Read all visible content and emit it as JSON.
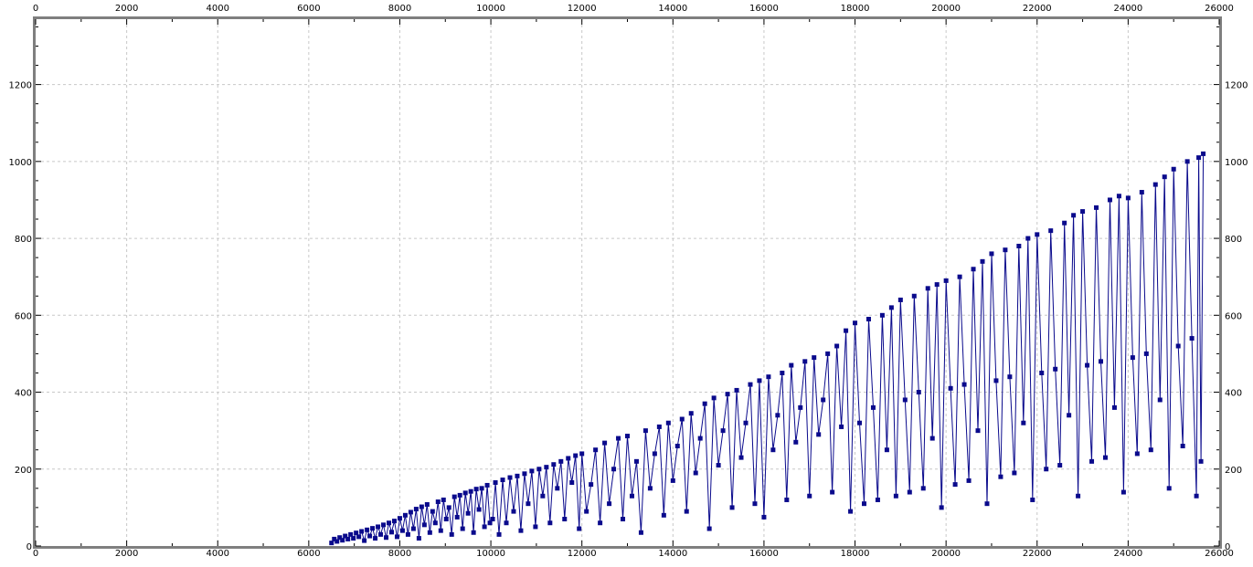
{
  "chart_data": {
    "type": "line",
    "title": "",
    "xlabel": "",
    "ylabel": "",
    "xlim": [
      0,
      26000
    ],
    "ylim": [
      0,
      1370
    ],
    "x_ticks": [
      0,
      2000,
      4000,
      6000,
      8000,
      10000,
      12000,
      14000,
      16000,
      18000,
      20000,
      22000,
      24000,
      26000
    ],
    "y_ticks": [
      0,
      200,
      400,
      600,
      800,
      1000,
      1200
    ],
    "x_ticks_top": true,
    "y_ticks_right": true,
    "grid": true,
    "legend": "none",
    "colors": {
      "series": "#0a0a8c",
      "grid": "#c8c8c8",
      "frame": "#7f7f7f"
    },
    "marker": "square",
    "series": [
      {
        "points": [
          [
            6500,
            8
          ],
          [
            6560,
            18
          ],
          [
            6620,
            12
          ],
          [
            6680,
            22
          ],
          [
            6740,
            15
          ],
          [
            6800,
            26
          ],
          [
            6860,
            18
          ],
          [
            6920,
            30
          ],
          [
            6980,
            20
          ],
          [
            7040,
            34
          ],
          [
            7100,
            24
          ],
          [
            7160,
            38
          ],
          [
            7220,
            14
          ],
          [
            7280,
            42
          ],
          [
            7340,
            26
          ],
          [
            7400,
            46
          ],
          [
            7460,
            20
          ],
          [
            7520,
            50
          ],
          [
            7580,
            30
          ],
          [
            7640,
            55
          ],
          [
            7700,
            22
          ],
          [
            7760,
            60
          ],
          [
            7820,
            36
          ],
          [
            7880,
            65
          ],
          [
            7940,
            24
          ],
          [
            8000,
            72
          ],
          [
            8060,
            40
          ],
          [
            8120,
            80
          ],
          [
            8180,
            30
          ],
          [
            8240,
            88
          ],
          [
            8300,
            45
          ],
          [
            8360,
            96
          ],
          [
            8420,
            20
          ],
          [
            8480,
            102
          ],
          [
            8540,
            55
          ],
          [
            8600,
            108
          ],
          [
            8660,
            35
          ],
          [
            8720,
            90
          ],
          [
            8780,
            60
          ],
          [
            8840,
            115
          ],
          [
            8900,
            40
          ],
          [
            8960,
            120
          ],
          [
            9020,
            70
          ],
          [
            9080,
            100
          ],
          [
            9140,
            30
          ],
          [
            9200,
            128
          ],
          [
            9260,
            75
          ],
          [
            9320,
            132
          ],
          [
            9380,
            45
          ],
          [
            9440,
            138
          ],
          [
            9500,
            85
          ],
          [
            9560,
            142
          ],
          [
            9620,
            35
          ],
          [
            9680,
            148
          ],
          [
            9740,
            95
          ],
          [
            9800,
            150
          ],
          [
            9860,
            50
          ],
          [
            9920,
            158
          ],
          [
            9980,
            60
          ],
          [
            10040,
            70
          ],
          [
            10100,
            165
          ],
          [
            10180,
            30
          ],
          [
            10260,
            172
          ],
          [
            10340,
            60
          ],
          [
            10420,
            178
          ],
          [
            10500,
            90
          ],
          [
            10580,
            182
          ],
          [
            10660,
            40
          ],
          [
            10740,
            188
          ],
          [
            10820,
            110
          ],
          [
            10900,
            195
          ],
          [
            10980,
            50
          ],
          [
            11060,
            200
          ],
          [
            11140,
            130
          ],
          [
            11220,
            205
          ],
          [
            11300,
            60
          ],
          [
            11380,
            212
          ],
          [
            11460,
            150
          ],
          [
            11540,
            220
          ],
          [
            11620,
            70
          ],
          [
            11700,
            228
          ],
          [
            11780,
            165
          ],
          [
            11860,
            235
          ],
          [
            11940,
            45
          ],
          [
            12000,
            240
          ],
          [
            12100,
            90
          ],
          [
            12200,
            160
          ],
          [
            12300,
            250
          ],
          [
            12400,
            60
          ],
          [
            12500,
            268
          ],
          [
            12600,
            110
          ],
          [
            12700,
            200
          ],
          [
            12800,
            280
          ],
          [
            12900,
            70
          ],
          [
            13000,
            286
          ],
          [
            13100,
            130
          ],
          [
            13200,
            220
          ],
          [
            13300,
            35
          ],
          [
            13400,
            300
          ],
          [
            13500,
            150
          ],
          [
            13600,
            240
          ],
          [
            13700,
            310
          ],
          [
            13800,
            80
          ],
          [
            13900,
            320
          ],
          [
            14000,
            170
          ],
          [
            14100,
            260
          ],
          [
            14200,
            330
          ],
          [
            14300,
            90
          ],
          [
            14400,
            345
          ],
          [
            14500,
            190
          ],
          [
            14600,
            280
          ],
          [
            14700,
            370
          ],
          [
            14800,
            45
          ],
          [
            14900,
            385
          ],
          [
            15000,
            210
          ],
          [
            15100,
            300
          ],
          [
            15200,
            395
          ],
          [
            15300,
            100
          ],
          [
            15400,
            405
          ],
          [
            15500,
            230
          ],
          [
            15600,
            320
          ],
          [
            15700,
            420
          ],
          [
            15800,
            110
          ],
          [
            15900,
            430
          ],
          [
            16000,
            75
          ],
          [
            16100,
            440
          ],
          [
            16200,
            250
          ],
          [
            16300,
            340
          ],
          [
            16400,
            450
          ],
          [
            16500,
            120
          ],
          [
            16600,
            470
          ],
          [
            16700,
            270
          ],
          [
            16800,
            360
          ],
          [
            16900,
            480
          ],
          [
            17000,
            130
          ],
          [
            17100,
            490
          ],
          [
            17200,
            290
          ],
          [
            17300,
            380
          ],
          [
            17400,
            500
          ],
          [
            17500,
            140
          ],
          [
            17600,
            520
          ],
          [
            17700,
            310
          ],
          [
            17800,
            560
          ],
          [
            17900,
            90
          ],
          [
            18000,
            580
          ],
          [
            18100,
            320
          ],
          [
            18200,
            110
          ],
          [
            18300,
            590
          ],
          [
            18400,
            360
          ],
          [
            18500,
            120
          ],
          [
            18600,
            600
          ],
          [
            18700,
            250
          ],
          [
            18800,
            620
          ],
          [
            18900,
            130
          ],
          [
            19000,
            640
          ],
          [
            19100,
            380
          ],
          [
            19200,
            140
          ],
          [
            19300,
            650
          ],
          [
            19400,
            400
          ],
          [
            19500,
            150
          ],
          [
            19600,
            670
          ],
          [
            19700,
            280
          ],
          [
            19800,
            680
          ],
          [
            19900,
            100
          ],
          [
            20000,
            690
          ],
          [
            20100,
            410
          ],
          [
            20200,
            160
          ],
          [
            20300,
            700
          ],
          [
            20400,
            420
          ],
          [
            20500,
            170
          ],
          [
            20600,
            720
          ],
          [
            20700,
            300
          ],
          [
            20800,
            740
          ],
          [
            20900,
            110
          ],
          [
            21000,
            760
          ],
          [
            21100,
            430
          ],
          [
            21200,
            180
          ],
          [
            21300,
            770
          ],
          [
            21400,
            440
          ],
          [
            21500,
            190
          ],
          [
            21600,
            780
          ],
          [
            21700,
            320
          ],
          [
            21800,
            800
          ],
          [
            21900,
            120
          ],
          [
            22000,
            810
          ],
          [
            22100,
            450
          ],
          [
            22200,
            200
          ],
          [
            22300,
            820
          ],
          [
            22400,
            460
          ],
          [
            22500,
            210
          ],
          [
            22600,
            840
          ],
          [
            22700,
            340
          ],
          [
            22800,
            860
          ],
          [
            22900,
            130
          ],
          [
            23000,
            870
          ],
          [
            23100,
            470
          ],
          [
            23200,
            220
          ],
          [
            23300,
            880
          ],
          [
            23400,
            480
          ],
          [
            23500,
            230
          ],
          [
            23600,
            900
          ],
          [
            23700,
            360
          ],
          [
            23800,
            910
          ],
          [
            23900,
            140
          ],
          [
            24000,
            905
          ],
          [
            24100,
            490
          ],
          [
            24200,
            240
          ],
          [
            24300,
            920
          ],
          [
            24400,
            500
          ],
          [
            24500,
            250
          ],
          [
            24600,
            940
          ],
          [
            24700,
            380
          ],
          [
            24800,
            960
          ],
          [
            24900,
            150
          ],
          [
            25000,
            980
          ],
          [
            25100,
            520
          ],
          [
            25200,
            260
          ],
          [
            25300,
            1000
          ],
          [
            25400,
            540
          ],
          [
            25500,
            130
          ],
          [
            25550,
            1010
          ],
          [
            25600,
            220
          ],
          [
            25650,
            1020
          ]
        ]
      }
    ]
  }
}
